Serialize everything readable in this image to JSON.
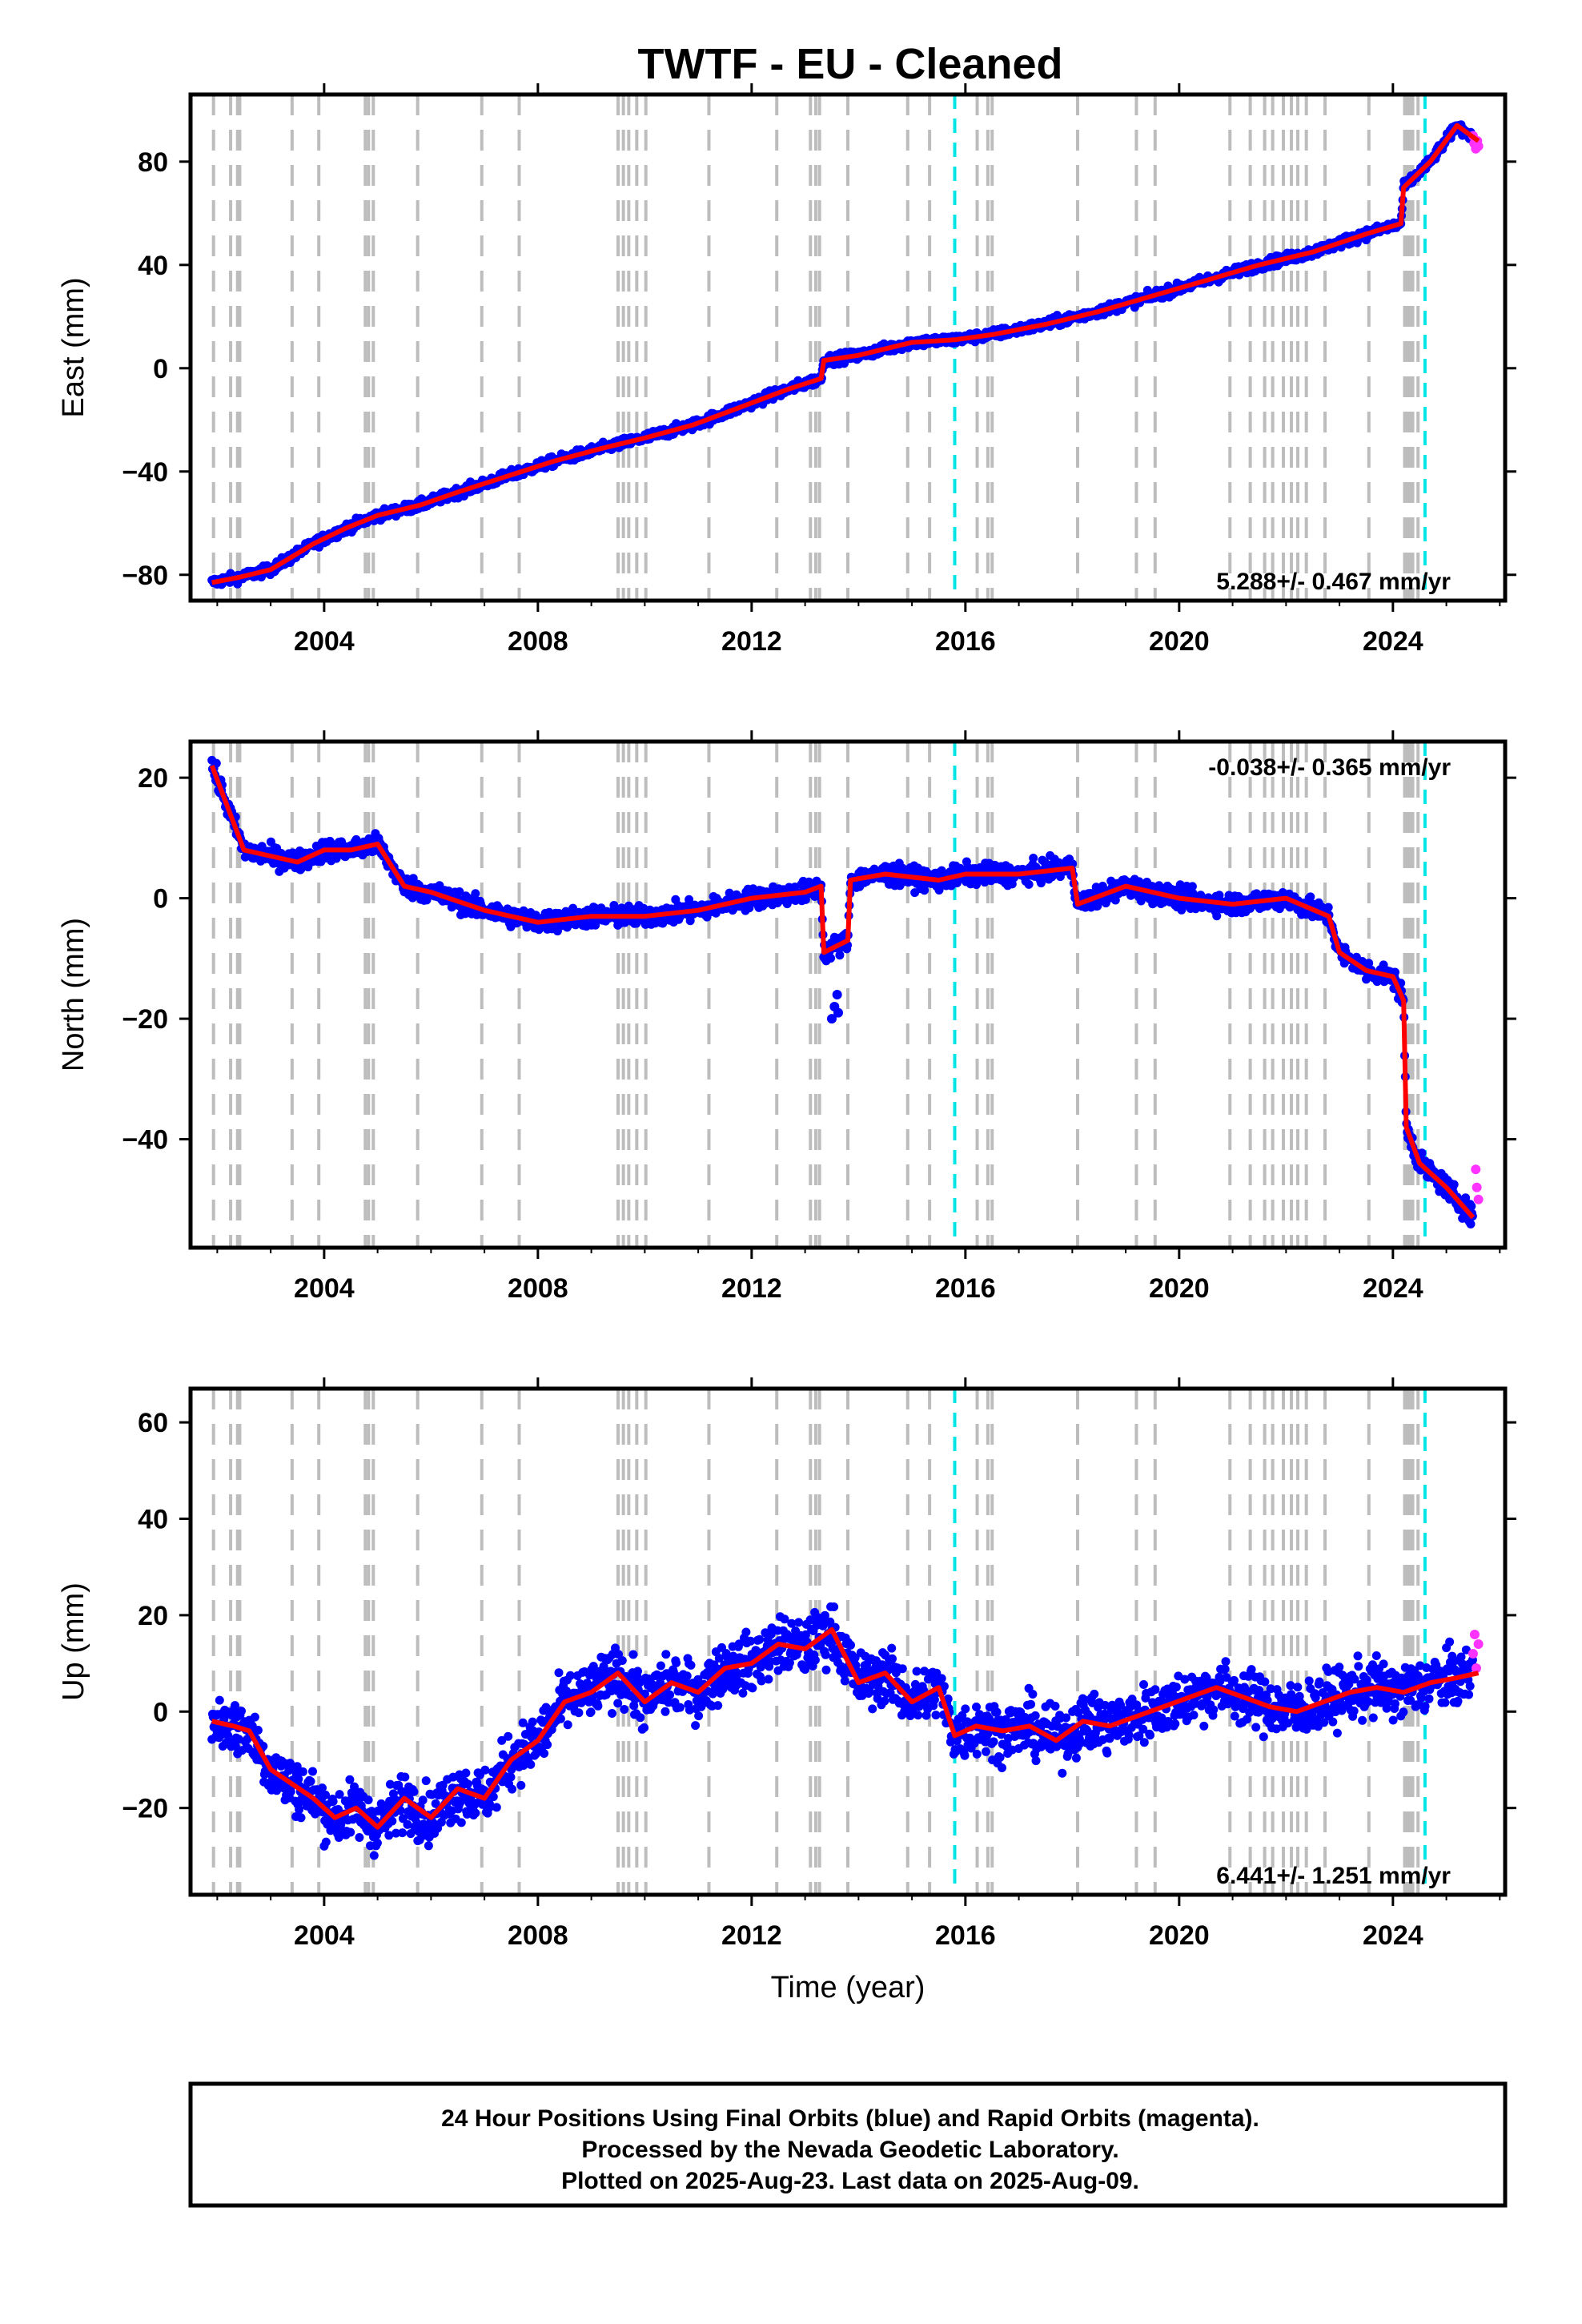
{
  "title": "TWTF  - EU - Cleaned",
  "colors": {
    "final": "#0000ff",
    "rapid": "#ff33ff",
    "model": "#ff0000",
    "event_gray": "#bdbdbd",
    "event_cyan": "#00e6e6"
  },
  "chart_data": [
    {
      "type": "scatter",
      "component": "east",
      "ylabel": "East (mm)",
      "xlim": [
        2001.5,
        2026.1
      ],
      "ylim": [
        -90,
        106
      ],
      "xticks": [
        2004,
        2008,
        2012,
        2016,
        2020,
        2024
      ],
      "xtick_labels": [
        "2004",
        "2008",
        "2012",
        "2016",
        "2020",
        "2024"
      ],
      "yticks": [
        -80,
        -40,
        0,
        40,
        80
      ],
      "ytick_labels": [
        "−80",
        "−40",
        "0",
        "40",
        "80"
      ],
      "rate_text": "5.288+/- 0.467 mm/yr",
      "rate_position": "bottom-right",
      "model_points": [
        [
          2001.9,
          -83
        ],
        [
          2002.4,
          -81
        ],
        [
          2003.0,
          -78
        ],
        [
          2003.8,
          -68
        ],
        [
          2004.4,
          -62
        ],
        [
          2005.0,
          -57
        ],
        [
          2005.8,
          -53
        ],
        [
          2006.5,
          -48
        ],
        [
          2007.4,
          -42
        ],
        [
          2008.3,
          -36
        ],
        [
          2009.2,
          -31
        ],
        [
          2010.0,
          -27
        ],
        [
          2010.9,
          -22
        ],
        [
          2011.8,
          -15
        ],
        [
          2012.7,
          -8
        ],
        [
          2013.3,
          -4
        ],
        [
          2013.35,
          3
        ],
        [
          2014.0,
          5
        ],
        [
          2015.0,
          10
        ],
        [
          2015.8,
          11
        ],
        [
          2016.5,
          13
        ],
        [
          2017.5,
          17
        ],
        [
          2018.5,
          22
        ],
        [
          2019.5,
          28
        ],
        [
          2020.5,
          34
        ],
        [
          2021.5,
          40
        ],
        [
          2022.5,
          45
        ],
        [
          2023.5,
          52
        ],
        [
          2024.15,
          56
        ],
        [
          2024.2,
          70
        ],
        [
          2024.7,
          80
        ],
        [
          2025.2,
          94
        ],
        [
          2025.6,
          88
        ]
      ],
      "series": [
        {
          "name": "Final Orbits",
          "role": "final"
        },
        {
          "name": "Rapid Orbits",
          "role": "rapid"
        }
      ],
      "rapid_points": [
        [
          2025.5,
          90
        ],
        [
          2025.52,
          87
        ],
        [
          2025.55,
          85
        ],
        [
          2025.58,
          88
        ],
        [
          2025.6,
          86
        ]
      ]
    },
    {
      "type": "scatter",
      "component": "north",
      "ylabel": "North (mm)",
      "xlim": [
        2001.5,
        2026.1
      ],
      "ylim": [
        -58,
        26
      ],
      "xticks": [
        2004,
        2008,
        2012,
        2016,
        2020,
        2024
      ],
      "xtick_labels": [
        "2004",
        "2008",
        "2012",
        "2016",
        "2020",
        "2024"
      ],
      "yticks": [
        -40,
        -20,
        0,
        20
      ],
      "ytick_labels": [
        "−40",
        "−20",
        "0",
        "20"
      ],
      "rate_text": "-0.038+/- 0.365 mm/yr",
      "rate_position": "top-right",
      "model_points": [
        [
          2001.9,
          22
        ],
        [
          2002.2,
          15
        ],
        [
          2002.5,
          8
        ],
        [
          2003.0,
          7
        ],
        [
          2003.5,
          6
        ],
        [
          2004.0,
          8
        ],
        [
          2004.5,
          8
        ],
        [
          2005.0,
          9
        ],
        [
          2005.5,
          2
        ],
        [
          2006.0,
          1
        ],
        [
          2007.0,
          -2
        ],
        [
          2008.0,
          -4
        ],
        [
          2009.0,
          -3
        ],
        [
          2010.0,
          -3
        ],
        [
          2011.0,
          -2
        ],
        [
          2012.0,
          0
        ],
        [
          2013.0,
          1
        ],
        [
          2013.3,
          2
        ],
        [
          2013.35,
          -9
        ],
        [
          2013.8,
          -7
        ],
        [
          2013.85,
          3
        ],
        [
          2014.5,
          4
        ],
        [
          2015.5,
          3
        ],
        [
          2016.0,
          4
        ],
        [
          2017.0,
          4
        ],
        [
          2018.0,
          5
        ],
        [
          2018.1,
          -1
        ],
        [
          2019.0,
          2
        ],
        [
          2020.0,
          0
        ],
        [
          2021.0,
          -1
        ],
        [
          2022.0,
          0
        ],
        [
          2022.8,
          -3
        ],
        [
          2023.0,
          -9
        ],
        [
          2023.5,
          -12
        ],
        [
          2024.0,
          -13
        ],
        [
          2024.2,
          -17
        ],
        [
          2024.25,
          -38
        ],
        [
          2024.5,
          -44
        ],
        [
          2025.0,
          -48
        ],
        [
          2025.5,
          -53
        ]
      ],
      "series": [
        {
          "name": "Final Orbits",
          "role": "final"
        },
        {
          "name": "Rapid Orbits",
          "role": "rapid"
        }
      ],
      "outlier_cluster": [
        [
          2013.5,
          -20
        ],
        [
          2013.55,
          -18
        ],
        [
          2013.6,
          -16
        ],
        [
          2013.62,
          -19
        ]
      ],
      "rapid_points": [
        [
          2025.55,
          -45
        ],
        [
          2025.57,
          -48
        ],
        [
          2025.6,
          -50
        ]
      ]
    },
    {
      "type": "scatter",
      "component": "up",
      "ylabel": "Up (mm)",
      "xlabel": "Time (year)",
      "xlim": [
        2001.5,
        2026.1
      ],
      "ylim": [
        -38,
        67
      ],
      "xticks": [
        2004,
        2008,
        2012,
        2016,
        2020,
        2024
      ],
      "xtick_labels": [
        "2004",
        "2008",
        "2012",
        "2016",
        "2020",
        "2024"
      ],
      "yticks": [
        -20,
        0,
        20,
        40,
        60
      ],
      "ytick_labels": [
        "−20",
        "0",
        "20",
        "40",
        "60"
      ],
      "rate_text": "6.441+/- 1.251 mm/yr",
      "rate_position": "bottom-right",
      "model_points": [
        [
          2001.9,
          -2
        ],
        [
          2002.3,
          -3
        ],
        [
          2002.6,
          -4
        ],
        [
          2003.0,
          -12
        ],
        [
          2003.4,
          -15
        ],
        [
          2003.8,
          -18
        ],
        [
          2004.2,
          -22
        ],
        [
          2004.6,
          -20
        ],
        [
          2005.0,
          -24
        ],
        [
          2005.5,
          -18
        ],
        [
          2006.0,
          -22
        ],
        [
          2006.5,
          -16
        ],
        [
          2007.0,
          -18
        ],
        [
          2007.5,
          -10
        ],
        [
          2008.0,
          -6
        ],
        [
          2008.5,
          2
        ],
        [
          2009.0,
          4
        ],
        [
          2009.5,
          8
        ],
        [
          2010.0,
          2
        ],
        [
          2010.5,
          6
        ],
        [
          2011.0,
          4
        ],
        [
          2011.5,
          9
        ],
        [
          2012.0,
          10
        ],
        [
          2012.5,
          14
        ],
        [
          2013.0,
          13
        ],
        [
          2013.5,
          17
        ],
        [
          2014.0,
          6
        ],
        [
          2014.5,
          8
        ],
        [
          2015.0,
          2
        ],
        [
          2015.5,
          5
        ],
        [
          2015.8,
          -5
        ],
        [
          2016.2,
          -3
        ],
        [
          2016.7,
          -4
        ],
        [
          2017.2,
          -3
        ],
        [
          2017.7,
          -6
        ],
        [
          2018.2,
          -2
        ],
        [
          2018.7,
          -3
        ],
        [
          2019.2,
          -1
        ],
        [
          2019.7,
          1
        ],
        [
          2020.2,
          3
        ],
        [
          2020.7,
          5
        ],
        [
          2021.2,
          3
        ],
        [
          2021.7,
          1
        ],
        [
          2022.2,
          0
        ],
        [
          2022.7,
          2
        ],
        [
          2023.2,
          4
        ],
        [
          2023.7,
          5
        ],
        [
          2024.2,
          4
        ],
        [
          2024.7,
          6
        ],
        [
          2025.2,
          7
        ],
        [
          2025.6,
          8
        ]
      ],
      "series": [
        {
          "name": "Final Orbits",
          "role": "final"
        },
        {
          "name": "Rapid Orbits",
          "role": "rapid"
        }
      ],
      "rapid_points": [
        [
          2025.5,
          12
        ],
        [
          2025.53,
          16
        ],
        [
          2025.56,
          9
        ],
        [
          2025.6,
          14
        ]
      ]
    }
  ],
  "gray_event_lines": [
    2001.93,
    2002.25,
    2002.38,
    2002.42,
    2003.4,
    2003.9,
    2004.77,
    2004.83,
    2004.92,
    2005.75,
    2006.95,
    2007.65,
    2009.5,
    2009.6,
    2009.7,
    2009.85,
    2010.02,
    2011.2,
    2012.47,
    2013.1,
    2013.2,
    2013.27,
    2013.8,
    2014.92,
    2015.33,
    2016.22,
    2016.42,
    2016.5,
    2018.1,
    2019.2,
    2019.55,
    2020.95,
    2021.33,
    2021.6,
    2021.75,
    2021.95,
    2022.1,
    2022.22,
    2022.38,
    2022.73,
    2023.55,
    2024.22,
    2024.27,
    2024.32,
    2024.37,
    2024.47
  ],
  "cyan_event_lines": [
    2015.8,
    2024.6
  ],
  "footer": {
    "line1": "24 Hour Positions Using Final Orbits (blue) and Rapid Orbits (magenta).",
    "line2": "Processed by the Nevada Geodetic Laboratory.",
    "line3": "Plotted on 2025-Aug-23. Last data on 2025-Aug-09."
  }
}
